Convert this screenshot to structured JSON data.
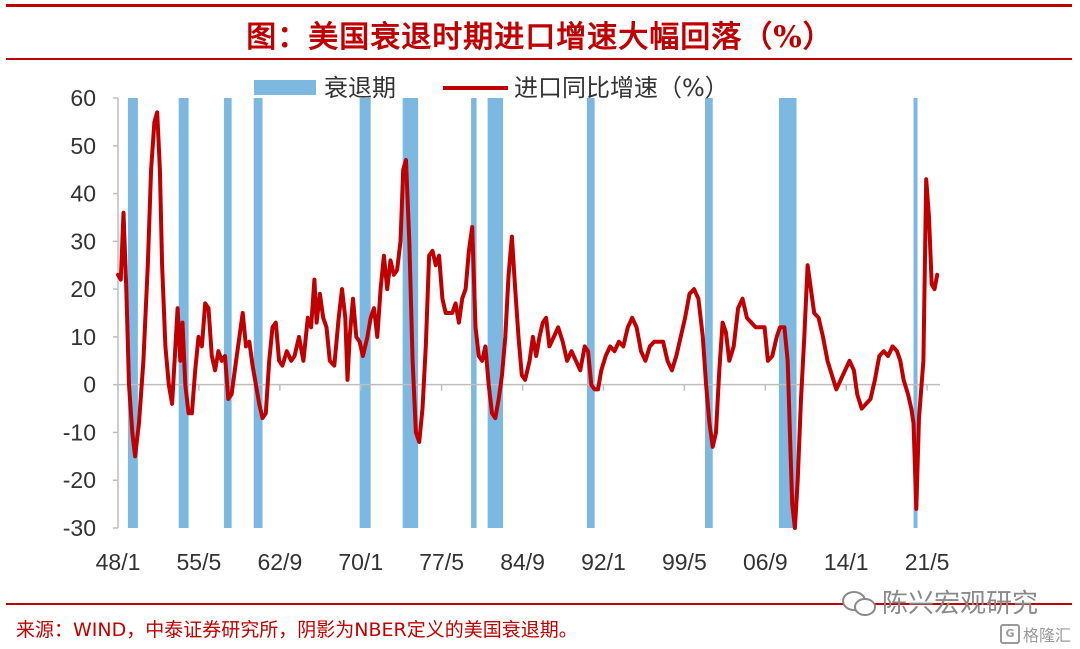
{
  "header": {
    "title": "图：美国衰退时期进口增速大幅回落（%）"
  },
  "footer": {
    "source": "来源：WIND，中泰证券研究所，阴影为NBER定义的美国衰退期。",
    "watermark": "陈兴宏观研究",
    "logo2": "格隆汇",
    "logo2_glyph": "G"
  },
  "colors": {
    "accent": "#c00000",
    "recession": "#7db8e0",
    "line": "#c00000"
  },
  "chart_data": {
    "type": "line",
    "title": "",
    "xlabel": "",
    "ylabel": "",
    "ylim": [
      -30,
      60
    ],
    "yticks": [
      60,
      50,
      40,
      30,
      20,
      10,
      0,
      -10,
      -20,
      -30
    ],
    "xlim": [
      1948.0,
      2022.5
    ],
    "xticks": [
      {
        "label": "48/1",
        "x": 1948.0
      },
      {
        "label": "55/5",
        "x": 1955.33
      },
      {
        "label": "62/9",
        "x": 1962.67
      },
      {
        "label": "70/1",
        "x": 1970.0
      },
      {
        "label": "77/5",
        "x": 1977.33
      },
      {
        "label": "84/9",
        "x": 1984.67
      },
      {
        "label": "92/1",
        "x": 1992.0
      },
      {
        "label": "99/5",
        "x": 1999.33
      },
      {
        "label": "06/9",
        "x": 2006.67
      },
      {
        "label": "14/1",
        "x": 2014.0
      },
      {
        "label": "21/5",
        "x": 2021.33
      }
    ],
    "grid": false,
    "legend_position": "top",
    "legend": [
      {
        "label": "衰退期",
        "kind": "bar"
      },
      {
        "label": "进口同比增速（%）",
        "kind": "line"
      }
    ],
    "recessions": [
      [
        1948.9,
        1949.8
      ],
      [
        1953.5,
        1954.4
      ],
      [
        1957.6,
        1958.3
      ],
      [
        1960.3,
        1961.1
      ],
      [
        1969.9,
        1970.9
      ],
      [
        1973.8,
        1975.2
      ],
      [
        1980.0,
        1980.5
      ],
      [
        1981.5,
        1982.9
      ],
      [
        1990.5,
        1991.2
      ],
      [
        2001.2,
        2001.9
      ],
      [
        2007.9,
        2009.5
      ],
      [
        2020.1,
        2020.4
      ]
    ],
    "series": [
      {
        "name": "进口同比增速（%）",
        "points": [
          [
            1948.0,
            23
          ],
          [
            1948.25,
            22
          ],
          [
            1948.5,
            36
          ],
          [
            1948.75,
            20
          ],
          [
            1949.0,
            0
          ],
          [
            1949.3,
            -10
          ],
          [
            1949.55,
            -15
          ],
          [
            1949.9,
            -8
          ],
          [
            1950.3,
            5
          ],
          [
            1950.7,
            25
          ],
          [
            1951.0,
            45
          ],
          [
            1951.3,
            55
          ],
          [
            1951.55,
            57
          ],
          [
            1951.8,
            45
          ],
          [
            1952.0,
            25
          ],
          [
            1952.3,
            8
          ],
          [
            1952.6,
            0
          ],
          [
            1952.9,
            -4
          ],
          [
            1953.2,
            8
          ],
          [
            1953.4,
            16
          ],
          [
            1953.65,
            5
          ],
          [
            1953.85,
            13
          ],
          [
            1954.1,
            0
          ],
          [
            1954.4,
            -6
          ],
          [
            1954.7,
            -6
          ],
          [
            1955.0,
            3
          ],
          [
            1955.3,
            10
          ],
          [
            1955.6,
            8
          ],
          [
            1955.9,
            17
          ],
          [
            1956.2,
            16
          ],
          [
            1956.5,
            6
          ],
          [
            1956.8,
            3
          ],
          [
            1957.1,
            7
          ],
          [
            1957.4,
            5
          ],
          [
            1957.7,
            6
          ],
          [
            1958.0,
            -3
          ],
          [
            1958.3,
            -2
          ],
          [
            1958.7,
            5
          ],
          [
            1959.0,
            10
          ],
          [
            1959.3,
            15
          ],
          [
            1959.6,
            8
          ],
          [
            1959.9,
            9
          ],
          [
            1960.2,
            4
          ],
          [
            1960.5,
            0
          ],
          [
            1960.8,
            -4
          ],
          [
            1961.1,
            -7
          ],
          [
            1961.4,
            -6
          ],
          [
            1961.7,
            5
          ],
          [
            1962.0,
            12
          ],
          [
            1962.3,
            13
          ],
          [
            1962.6,
            5
          ],
          [
            1962.9,
            4
          ],
          [
            1963.3,
            7
          ],
          [
            1963.7,
            5
          ],
          [
            1964.0,
            6
          ],
          [
            1964.4,
            10
          ],
          [
            1964.8,
            5
          ],
          [
            1965.2,
            14
          ],
          [
            1965.5,
            12
          ],
          [
            1965.8,
            22
          ],
          [
            1966.0,
            13
          ],
          [
            1966.3,
            19
          ],
          [
            1966.6,
            14
          ],
          [
            1966.9,
            12
          ],
          [
            1967.2,
            5
          ],
          [
            1967.6,
            4
          ],
          [
            1968.0,
            14
          ],
          [
            1968.3,
            20
          ],
          [
            1968.6,
            14
          ],
          [
            1968.8,
            1
          ],
          [
            1969.0,
            10
          ],
          [
            1969.3,
            18
          ],
          [
            1969.6,
            10
          ],
          [
            1969.9,
            9
          ],
          [
            1970.2,
            6
          ],
          [
            1970.6,
            10
          ],
          [
            1970.9,
            14
          ],
          [
            1971.2,
            16
          ],
          [
            1971.5,
            10
          ],
          [
            1971.8,
            20
          ],
          [
            1972.1,
            27
          ],
          [
            1972.4,
            20
          ],
          [
            1972.7,
            26
          ],
          [
            1973.0,
            23
          ],
          [
            1973.3,
            24
          ],
          [
            1973.6,
            30
          ],
          [
            1973.85,
            45
          ],
          [
            1974.1,
            47
          ],
          [
            1974.4,
            30
          ],
          [
            1974.7,
            5
          ],
          [
            1975.0,
            -10
          ],
          [
            1975.3,
            -12
          ],
          [
            1975.6,
            -5
          ],
          [
            1975.9,
            8
          ],
          [
            1976.2,
            27
          ],
          [
            1976.5,
            28
          ],
          [
            1976.8,
            25
          ],
          [
            1977.1,
            27
          ],
          [
            1977.4,
            18
          ],
          [
            1977.7,
            15
          ],
          [
            1978.0,
            15
          ],
          [
            1978.3,
            15
          ],
          [
            1978.6,
            17
          ],
          [
            1978.9,
            13
          ],
          [
            1979.2,
            18
          ],
          [
            1979.5,
            20
          ],
          [
            1979.8,
            28
          ],
          [
            1980.1,
            33
          ],
          [
            1980.4,
            12
          ],
          [
            1980.7,
            6
          ],
          [
            1981.0,
            5
          ],
          [
            1981.3,
            8
          ],
          [
            1981.6,
            0
          ],
          [
            1981.9,
            -6
          ],
          [
            1982.2,
            -7
          ],
          [
            1982.5,
            -3
          ],
          [
            1982.8,
            2
          ],
          [
            1983.1,
            10
          ],
          [
            1983.4,
            23
          ],
          [
            1983.7,
            31
          ],
          [
            1984.0,
            20
          ],
          [
            1984.3,
            10
          ],
          [
            1984.6,
            2
          ],
          [
            1984.9,
            1
          ],
          [
            1985.3,
            5
          ],
          [
            1985.6,
            10
          ],
          [
            1985.9,
            6
          ],
          [
            1986.2,
            10
          ],
          [
            1986.5,
            13
          ],
          [
            1986.8,
            14
          ],
          [
            1987.1,
            8
          ],
          [
            1987.5,
            10
          ],
          [
            1987.9,
            12
          ],
          [
            1988.3,
            9
          ],
          [
            1988.7,
            5
          ],
          [
            1989.1,
            7
          ],
          [
            1989.5,
            5
          ],
          [
            1989.9,
            3
          ],
          [
            1990.3,
            8
          ],
          [
            1990.6,
            7
          ],
          [
            1990.9,
            0
          ],
          [
            1991.2,
            -1
          ],
          [
            1991.5,
            -1
          ],
          [
            1991.8,
            3
          ],
          [
            1992.2,
            6
          ],
          [
            1992.6,
            8
          ],
          [
            1993.0,
            7
          ],
          [
            1993.4,
            9
          ],
          [
            1993.8,
            8
          ],
          [
            1994.2,
            12
          ],
          [
            1994.6,
            14
          ],
          [
            1995.0,
            12
          ],
          [
            1995.4,
            7
          ],
          [
            1995.8,
            5
          ],
          [
            1996.2,
            8
          ],
          [
            1996.6,
            9
          ],
          [
            1997.0,
            9
          ],
          [
            1997.4,
            9
          ],
          [
            1997.8,
            5
          ],
          [
            1998.2,
            3
          ],
          [
            1998.6,
            6
          ],
          [
            1999.0,
            10
          ],
          [
            1999.4,
            14
          ],
          [
            1999.8,
            19
          ],
          [
            2000.2,
            20
          ],
          [
            2000.6,
            18
          ],
          [
            2001.0,
            10
          ],
          [
            2001.3,
            0
          ],
          [
            2001.6,
            -8
          ],
          [
            2001.9,
            -13
          ],
          [
            2002.2,
            -10
          ],
          [
            2002.5,
            3
          ],
          [
            2002.8,
            13
          ],
          [
            2003.1,
            11
          ],
          [
            2003.4,
            5
          ],
          [
            2003.8,
            8
          ],
          [
            2004.2,
            16
          ],
          [
            2004.6,
            18
          ],
          [
            2005.0,
            14
          ],
          [
            2005.4,
            13
          ],
          [
            2005.8,
            12
          ],
          [
            2006.2,
            12
          ],
          [
            2006.6,
            12
          ],
          [
            2006.9,
            5
          ],
          [
            2007.3,
            6
          ],
          [
            2007.7,
            10
          ],
          [
            2008.0,
            12
          ],
          [
            2008.4,
            12
          ],
          [
            2008.7,
            5
          ],
          [
            2008.9,
            -10
          ],
          [
            2009.1,
            -25
          ],
          [
            2009.35,
            -30
          ],
          [
            2009.6,
            -20
          ],
          [
            2009.9,
            -3
          ],
          [
            2010.2,
            10
          ],
          [
            2010.5,
            25
          ],
          [
            2010.8,
            20
          ],
          [
            2011.1,
            15
          ],
          [
            2011.5,
            14
          ],
          [
            2011.9,
            10
          ],
          [
            2012.3,
            5
          ],
          [
            2012.7,
            2
          ],
          [
            2013.1,
            -1
          ],
          [
            2013.5,
            1
          ],
          [
            2013.9,
            3
          ],
          [
            2014.3,
            5
          ],
          [
            2014.7,
            3
          ],
          [
            2015.0,
            -2
          ],
          [
            2015.4,
            -5
          ],
          [
            2015.8,
            -4
          ],
          [
            2016.2,
            -3
          ],
          [
            2016.6,
            1
          ],
          [
            2017.0,
            6
          ],
          [
            2017.4,
            7
          ],
          [
            2017.8,
            6
          ],
          [
            2018.2,
            8
          ],
          [
            2018.6,
            7
          ],
          [
            2018.9,
            5
          ],
          [
            2019.2,
            1
          ],
          [
            2019.6,
            -2
          ],
          [
            2019.9,
            -5
          ],
          [
            2020.1,
            -8
          ],
          [
            2020.35,
            -26
          ],
          [
            2020.6,
            -7
          ],
          [
            2021.0,
            5
          ],
          [
            2021.25,
            43
          ],
          [
            2021.5,
            35
          ],
          [
            2021.75,
            21
          ],
          [
            2022.0,
            20
          ],
          [
            2022.25,
            23
          ]
        ]
      }
    ]
  }
}
